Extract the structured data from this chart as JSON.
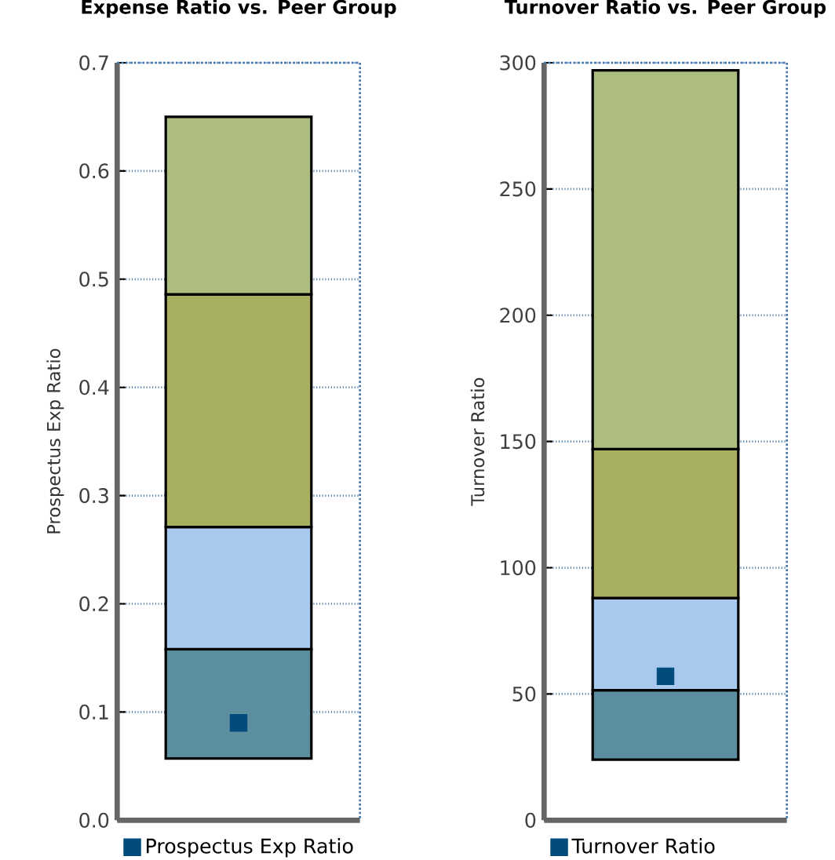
{
  "chart_data": [
    {
      "type": "bar",
      "title": "Expense Ratio vs. Peer Group",
      "ylabel": "Prospectus Exp Ratio",
      "categories": [
        null
      ],
      "ylim": [
        0,
        0.7
      ],
      "yticks": [
        {
          "value": 0,
          "label": "0.0"
        },
        0.1,
        0.2,
        0.3,
        0.4,
        0.5,
        0.6,
        0.7
      ],
      "grid": "y",
      "legend": "bottom",
      "series": [
        {
          "color": "#5b8fa0",
          "base": [
            0.057
          ],
          "values": [
            0.101
          ]
        },
        {
          "color": "#a8c8ee",
          "base": [
            0.158
          ],
          "values": [
            0.113
          ]
        },
        {
          "color": "#a8b060",
          "base": [
            0.271
          ],
          "values": [
            0.215
          ]
        },
        {
          "color": "#adbd80",
          "base": [
            0.486
          ],
          "values": [
            0.164
          ]
        },
        {
          "type": "scatter",
          "name": "Prospectus Exp Ratio",
          "color": "#004a7c",
          "marker": "square",
          "values": [
            0.09
          ]
        }
      ]
    },
    {
      "type": "bar",
      "title": "Turnover Ratio vs. Peer Group",
      "ylabel": "Turnover   Ratio",
      "categories": [
        null
      ],
      "ylim": [
        0,
        300
      ],
      "yticks": [
        0,
        50,
        100,
        150,
        200,
        250,
        300
      ],
      "grid": "y",
      "legend": "bottom",
      "series": [
        {
          "color": "#5b8fa0",
          "base": [
            24
          ],
          "values": [
            27.5
          ]
        },
        {
          "color": "#a8c8ee",
          "base": [
            51.5
          ],
          "values": [
            36.5
          ]
        },
        {
          "color": "#a8b060",
          "base": [
            88
          ],
          "values": [
            59
          ]
        },
        {
          "color": "#adbd80",
          "base": [
            147
          ],
          "values": [
            150
          ]
        },
        {
          "type": "scatter",
          "name": "Turnover   Ratio",
          "color": "#004a7c",
          "marker": "square",
          "values": [
            57
          ]
        }
      ]
    }
  ]
}
